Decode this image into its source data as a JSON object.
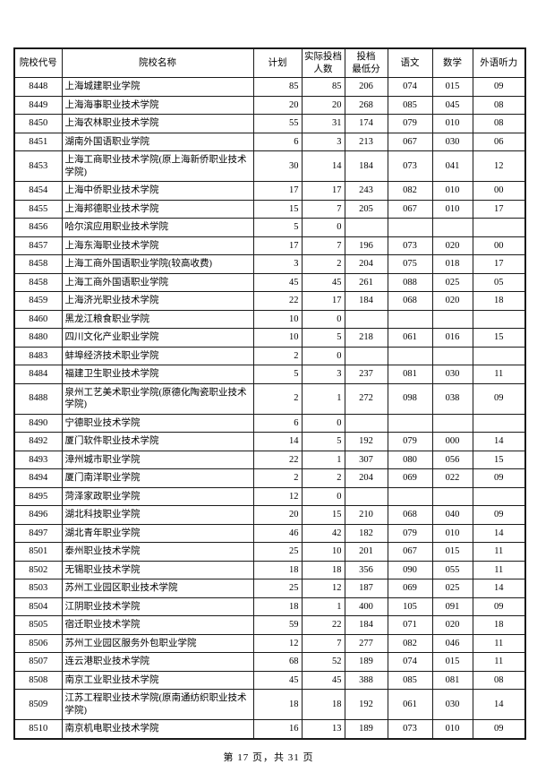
{
  "table": {
    "columns": [
      {
        "key": "code",
        "label": "院校代号"
      },
      {
        "key": "name",
        "label": "院校名称"
      },
      {
        "key": "plan",
        "label": "计划"
      },
      {
        "key": "actual",
        "label": "实际投档\n人数"
      },
      {
        "key": "min",
        "label": "投档\n最低分"
      },
      {
        "key": "chn",
        "label": "语文"
      },
      {
        "key": "math",
        "label": "数学"
      },
      {
        "key": "listen",
        "label": "外语听力"
      }
    ],
    "rows": [
      {
        "code": "8448",
        "name": "上海城建职业学院",
        "plan": "85",
        "actual": "85",
        "min": "206",
        "chn": "074",
        "math": "015",
        "listen": "09"
      },
      {
        "code": "8449",
        "name": "上海海事职业技术学院",
        "plan": "20",
        "actual": "20",
        "min": "268",
        "chn": "085",
        "math": "045",
        "listen": "08"
      },
      {
        "code": "8450",
        "name": "上海农林职业技术学院",
        "plan": "55",
        "actual": "31",
        "min": "174",
        "chn": "079",
        "math": "010",
        "listen": "08"
      },
      {
        "code": "8451",
        "name": "湖南外国语职业学院",
        "plan": "6",
        "actual": "3",
        "min": "213",
        "chn": "067",
        "math": "030",
        "listen": "06"
      },
      {
        "code": "8453",
        "name": "上海工商职业技术学院(原上海新侨职业技术学院)",
        "plan": "30",
        "actual": "14",
        "min": "184",
        "chn": "073",
        "math": "041",
        "listen": "12"
      },
      {
        "code": "8454",
        "name": "上海中侨职业技术学院",
        "plan": "17",
        "actual": "17",
        "min": "243",
        "chn": "082",
        "math": "010",
        "listen": "00"
      },
      {
        "code": "8455",
        "name": "上海邦德职业技术学院",
        "plan": "15",
        "actual": "7",
        "min": "205",
        "chn": "067",
        "math": "010",
        "listen": "17"
      },
      {
        "code": "8456",
        "name": "哈尔滨应用职业技术学院",
        "plan": "5",
        "actual": "0",
        "min": "",
        "chn": "",
        "math": "",
        "listen": ""
      },
      {
        "code": "8457",
        "name": "上海东海职业技术学院",
        "plan": "17",
        "actual": "7",
        "min": "196",
        "chn": "073",
        "math": "020",
        "listen": "00"
      },
      {
        "code": "8458",
        "name": "上海工商外国语职业学院(较高收费)",
        "plan": "3",
        "actual": "2",
        "min": "204",
        "chn": "075",
        "math": "018",
        "listen": "17"
      },
      {
        "code": "8458",
        "name": "上海工商外国语职业学院",
        "plan": "45",
        "actual": "45",
        "min": "261",
        "chn": "088",
        "math": "025",
        "listen": "05"
      },
      {
        "code": "8459",
        "name": "上海济光职业技术学院",
        "plan": "22",
        "actual": "17",
        "min": "184",
        "chn": "068",
        "math": "020",
        "listen": "18"
      },
      {
        "code": "8460",
        "name": "黑龙江粮食职业学院",
        "plan": "10",
        "actual": "0",
        "min": "",
        "chn": "",
        "math": "",
        "listen": ""
      },
      {
        "code": "8480",
        "name": "四川文化产业职业学院",
        "plan": "10",
        "actual": "5",
        "min": "218",
        "chn": "061",
        "math": "016",
        "listen": "15"
      },
      {
        "code": "8483",
        "name": "蚌埠经济技术职业学院",
        "plan": "2",
        "actual": "0",
        "min": "",
        "chn": "",
        "math": "",
        "listen": ""
      },
      {
        "code": "8484",
        "name": "福建卫生职业技术学院",
        "plan": "5",
        "actual": "3",
        "min": "237",
        "chn": "081",
        "math": "030",
        "listen": "11"
      },
      {
        "code": "8488",
        "name": "泉州工艺美术职业学院(原德化陶瓷职业技术学院)",
        "plan": "2",
        "actual": "1",
        "min": "272",
        "chn": "098",
        "math": "038",
        "listen": "09"
      },
      {
        "code": "8490",
        "name": "宁德职业技术学院",
        "plan": "6",
        "actual": "0",
        "min": "",
        "chn": "",
        "math": "",
        "listen": ""
      },
      {
        "code": "8492",
        "name": "厦门软件职业技术学院",
        "plan": "14",
        "actual": "5",
        "min": "192",
        "chn": "079",
        "math": "000",
        "listen": "14"
      },
      {
        "code": "8493",
        "name": "漳州城市职业学院",
        "plan": "22",
        "actual": "1",
        "min": "307",
        "chn": "080",
        "math": "056",
        "listen": "15"
      },
      {
        "code": "8494",
        "name": "厦门南洋职业学院",
        "plan": "2",
        "actual": "2",
        "min": "204",
        "chn": "069",
        "math": "022",
        "listen": "09"
      },
      {
        "code": "8495",
        "name": "菏泽家政职业学院",
        "plan": "12",
        "actual": "0",
        "min": "",
        "chn": "",
        "math": "",
        "listen": ""
      },
      {
        "code": "8496",
        "name": "湖北科技职业学院",
        "plan": "20",
        "actual": "15",
        "min": "210",
        "chn": "068",
        "math": "040",
        "listen": "09"
      },
      {
        "code": "8497",
        "name": "湖北青年职业学院",
        "plan": "46",
        "actual": "42",
        "min": "182",
        "chn": "079",
        "math": "010",
        "listen": "14"
      },
      {
        "code": "8501",
        "name": "泰州职业技术学院",
        "plan": "25",
        "actual": "10",
        "min": "201",
        "chn": "067",
        "math": "015",
        "listen": "11"
      },
      {
        "code": "8502",
        "name": "无锡职业技术学院",
        "plan": "18",
        "actual": "18",
        "min": "356",
        "chn": "090",
        "math": "055",
        "listen": "11"
      },
      {
        "code": "8503",
        "name": "苏州工业园区职业技术学院",
        "plan": "25",
        "actual": "12",
        "min": "187",
        "chn": "069",
        "math": "025",
        "listen": "14"
      },
      {
        "code": "8504",
        "name": "江阴职业技术学院",
        "plan": "18",
        "actual": "1",
        "min": "400",
        "chn": "105",
        "math": "091",
        "listen": "09"
      },
      {
        "code": "8505",
        "name": "宿迁职业技术学院",
        "plan": "59",
        "actual": "22",
        "min": "184",
        "chn": "071",
        "math": "020",
        "listen": "18"
      },
      {
        "code": "8506",
        "name": "苏州工业园区服务外包职业学院",
        "plan": "12",
        "actual": "7",
        "min": "277",
        "chn": "082",
        "math": "046",
        "listen": "11"
      },
      {
        "code": "8507",
        "name": "连云港职业技术学院",
        "plan": "68",
        "actual": "52",
        "min": "189",
        "chn": "074",
        "math": "015",
        "listen": "11"
      },
      {
        "code": "8508",
        "name": "南京工业职业技术学院",
        "plan": "45",
        "actual": "45",
        "min": "388",
        "chn": "085",
        "math": "081",
        "listen": "08"
      },
      {
        "code": "8509",
        "name": "江苏工程职业技术学院(原南通纺织职业技术学院)",
        "plan": "18",
        "actual": "18",
        "min": "192",
        "chn": "061",
        "math": "030",
        "listen": "14"
      },
      {
        "code": "8510",
        "name": "南京机电职业技术学院",
        "plan": "16",
        "actual": "13",
        "min": "189",
        "chn": "073",
        "math": "010",
        "listen": "09"
      }
    ]
  },
  "footer": {
    "page_text": "第 17 页，共 31 页"
  }
}
